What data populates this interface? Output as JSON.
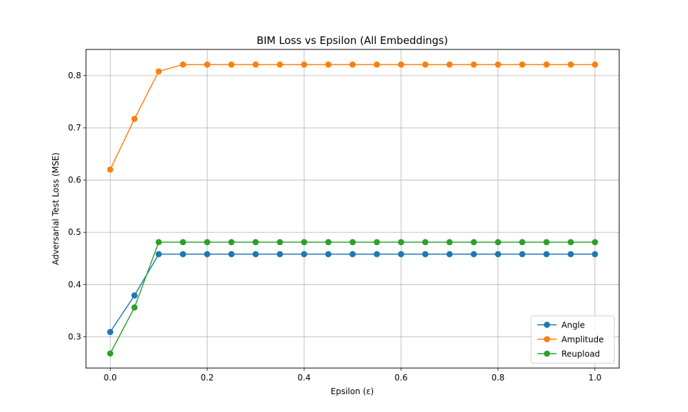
{
  "chart_data": {
    "type": "line",
    "title": "BIM Loss vs Epsilon (All Embeddings)",
    "xlabel": "Epsilon (ε)",
    "ylabel": "Adversarial Test Loss (MSE)",
    "xlim": [
      -0.05,
      1.05
    ],
    "ylim": [
      0.24,
      0.85
    ],
    "xticks": [
      0.0,
      0.2,
      0.4,
      0.6,
      0.8,
      1.0
    ],
    "xtick_labels": [
      "0.0",
      "0.2",
      "0.4",
      "0.6",
      "0.8",
      "1.0"
    ],
    "yticks": [
      0.3,
      0.4,
      0.5,
      0.6,
      0.7,
      0.8
    ],
    "ytick_labels": [
      "0.3",
      "0.4",
      "0.5",
      "0.6",
      "0.7",
      "0.8"
    ],
    "grid": true,
    "legend_position": "bottom-right",
    "x": [
      0.0,
      0.05,
      0.1,
      0.15,
      0.2,
      0.25,
      0.3,
      0.35,
      0.4,
      0.45,
      0.5,
      0.55,
      0.6,
      0.65,
      0.7,
      0.75,
      0.8,
      0.85,
      0.9,
      0.95,
      1.0
    ],
    "series": [
      {
        "name": "Angle",
        "color": "#1f77b4",
        "values": [
          0.309,
          0.379,
          0.458,
          0.458,
          0.458,
          0.458,
          0.458,
          0.458,
          0.458,
          0.458,
          0.458,
          0.458,
          0.458,
          0.458,
          0.458,
          0.458,
          0.458,
          0.458,
          0.458,
          0.458,
          0.458
        ]
      },
      {
        "name": "Amplitude",
        "color": "#ff7f0e",
        "values": [
          0.62,
          0.717,
          0.808,
          0.821,
          0.821,
          0.821,
          0.821,
          0.821,
          0.821,
          0.821,
          0.821,
          0.821,
          0.821,
          0.821,
          0.821,
          0.821,
          0.821,
          0.821,
          0.821,
          0.821,
          0.821
        ]
      },
      {
        "name": "Reupload",
        "color": "#2ca02c",
        "values": [
          0.268,
          0.356,
          0.481,
          0.481,
          0.481,
          0.481,
          0.481,
          0.481,
          0.481,
          0.481,
          0.481,
          0.481,
          0.481,
          0.481,
          0.481,
          0.481,
          0.481,
          0.481,
          0.481,
          0.481,
          0.481
        ]
      }
    ]
  }
}
